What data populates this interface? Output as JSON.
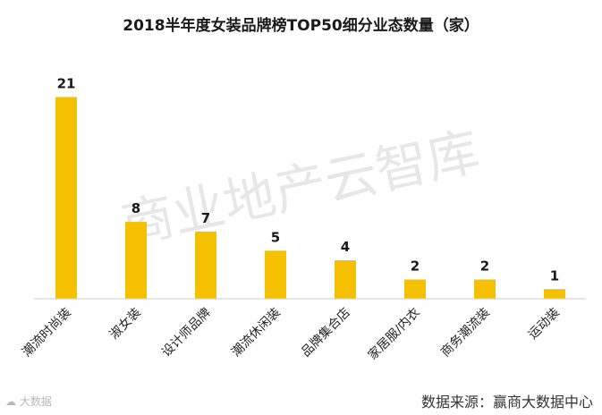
{
  "chart_data": {
    "type": "bar",
    "title": "2018半年度女装品牌榜TOP50细分业态数量（家）",
    "categories": [
      "潮流时尚装",
      "淑女装",
      "设计师品牌",
      "潮流休闲装",
      "品牌集合店",
      "家居服/内衣",
      "商务潮流装",
      "运动装"
    ],
    "values": [
      21,
      8,
      7,
      5,
      4,
      2,
      2,
      1
    ],
    "ylim": [
      0,
      23
    ],
    "bar_color": "#F5C000",
    "grid": false,
    "legend": "none"
  },
  "watermark": "商业地产云智库",
  "footer": {
    "logo_text": "大数据",
    "source": "数据来源：赢商大数据中心"
  }
}
